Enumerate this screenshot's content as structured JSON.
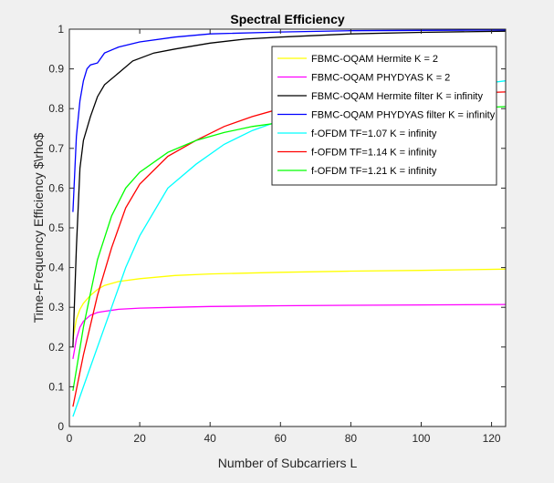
{
  "chart_data": {
    "type": "line",
    "title": "Spectral Efficiency",
    "xlabel": "Number of Subcarriers L",
    "ylabel": "Time-Frequency Efficiency $\\rho$",
    "xlim": [
      0,
      124
    ],
    "ylim": [
      0,
      1
    ],
    "xticks": [
      "0",
      "20",
      "40",
      "60",
      "80",
      "100",
      "120"
    ],
    "yticks": [
      "0",
      "0.1",
      "0.2",
      "0.3",
      "0.4",
      "0.5",
      "0.6",
      "0.7",
      "0.8",
      "0.9",
      "1"
    ],
    "grid": false,
    "legend_position": "top-right",
    "series": [
      {
        "name": "FBMC-OQAM Hermite K = 2",
        "color": "#ffff00",
        "x": [
          1,
          2,
          3,
          4,
          6,
          8,
          10,
          14,
          20,
          30,
          40,
          60,
          80,
          100,
          124
        ],
        "y": [
          0.22,
          0.27,
          0.295,
          0.31,
          0.33,
          0.345,
          0.355,
          0.365,
          0.372,
          0.38,
          0.384,
          0.388,
          0.391,
          0.393,
          0.396
        ]
      },
      {
        "name": "FBMC-OQAM PHYDYAS K = 2",
        "color": "#ff00ff",
        "x": [
          1,
          2,
          3,
          4,
          6,
          8,
          10,
          14,
          20,
          30,
          40,
          60,
          80,
          100,
          124
        ],
        "y": [
          0.17,
          0.22,
          0.25,
          0.265,
          0.28,
          0.287,
          0.29,
          0.295,
          0.298,
          0.3,
          0.302,
          0.304,
          0.305,
          0.306,
          0.307
        ]
      },
      {
        "name": "FBMC-OQAM Hermite filter K = infinity",
        "color": "#000000",
        "x": [
          1,
          2,
          3,
          4,
          6,
          8,
          10,
          14,
          18,
          24,
          30,
          40,
          50,
          60,
          80,
          100,
          124
        ],
        "y": [
          0.2,
          0.45,
          0.65,
          0.72,
          0.78,
          0.83,
          0.86,
          0.89,
          0.92,
          0.94,
          0.95,
          0.965,
          0.975,
          0.98,
          0.988,
          0.992,
          0.995
        ]
      },
      {
        "name": "FBMC-OQAM PHYDYAS filter K = infinity",
        "color": "#0000ff",
        "x": [
          1,
          2,
          3,
          4,
          5,
          6,
          8,
          10,
          14,
          20,
          30,
          40,
          60,
          80,
          100,
          124
        ],
        "y": [
          0.54,
          0.73,
          0.82,
          0.87,
          0.9,
          0.91,
          0.915,
          0.94,
          0.955,
          0.968,
          0.98,
          0.988,
          0.993,
          0.996,
          0.997,
          0.998
        ]
      },
      {
        "name": "f-OFDM TF=1.07 K = infinity",
        "color": "#00ffff",
        "x": [
          1,
          4,
          8,
          12,
          16,
          20,
          28,
          36,
          44,
          52,
          60,
          70,
          80,
          90,
          100,
          110,
          124
        ],
        "y": [
          0.025,
          0.1,
          0.2,
          0.3,
          0.4,
          0.48,
          0.6,
          0.66,
          0.71,
          0.745,
          0.77,
          0.79,
          0.81,
          0.825,
          0.84,
          0.855,
          0.87
        ]
      },
      {
        "name": "f-OFDM TF=1.14 K = infinity",
        "color": "#ff0000",
        "x": [
          1,
          4,
          8,
          12,
          16,
          20,
          28,
          36,
          44,
          52,
          60,
          70,
          80,
          90,
          100,
          110,
          124
        ],
        "y": [
          0.05,
          0.18,
          0.33,
          0.45,
          0.55,
          0.61,
          0.68,
          0.72,
          0.755,
          0.78,
          0.8,
          0.81,
          0.82,
          0.828,
          0.834,
          0.838,
          0.842
        ]
      },
      {
        "name": "f-OFDM TF=1.21 K = infinity",
        "color": "#00ff00",
        "x": [
          1,
          4,
          8,
          12,
          16,
          20,
          28,
          36,
          44,
          52,
          60,
          70,
          80,
          90,
          100,
          110,
          124
        ],
        "y": [
          0.09,
          0.25,
          0.42,
          0.53,
          0.6,
          0.64,
          0.69,
          0.72,
          0.74,
          0.755,
          0.765,
          0.775,
          0.783,
          0.79,
          0.795,
          0.8,
          0.805
        ]
      }
    ]
  }
}
